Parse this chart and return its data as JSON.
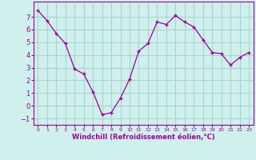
{
  "x": [
    0,
    1,
    2,
    3,
    4,
    5,
    6,
    7,
    8,
    9,
    10,
    11,
    12,
    13,
    14,
    15,
    16,
    17,
    18,
    19,
    20,
    21,
    22,
    23
  ],
  "y": [
    7.5,
    6.7,
    5.7,
    4.9,
    2.9,
    2.5,
    1.1,
    -0.7,
    -0.55,
    0.6,
    2.1,
    4.3,
    4.9,
    6.6,
    6.4,
    7.1,
    6.6,
    6.2,
    5.2,
    4.2,
    4.1,
    3.2,
    3.8,
    4.2
  ],
  "line_color": "#990099",
  "marker": "+",
  "marker_size": 3,
  "background_color": "#cff0ec",
  "grid_color": "#aad4ce",
  "xlabel": "Windchill (Refroidissement éolien,°C)",
  "xlabel_color": "#990099",
  "xtick_labels": [
    "0",
    "1",
    "2",
    "3",
    "4",
    "5",
    "6",
    "7",
    "8",
    "9",
    "10",
    "11",
    "12",
    "13",
    "14",
    "15",
    "16",
    "17",
    "18",
    "19",
    "20",
    "21",
    "22",
    "23"
  ],
  "ylim": [
    -1.5,
    8.2
  ],
  "xlim": [
    -0.5,
    23.5
  ],
  "yticks": [
    -1,
    0,
    1,
    2,
    3,
    4,
    5,
    6,
    7
  ],
  "tick_color": "#990099",
  "axis_color": "#990099",
  "figsize": [
    3.2,
    2.0
  ],
  "dpi": 100
}
